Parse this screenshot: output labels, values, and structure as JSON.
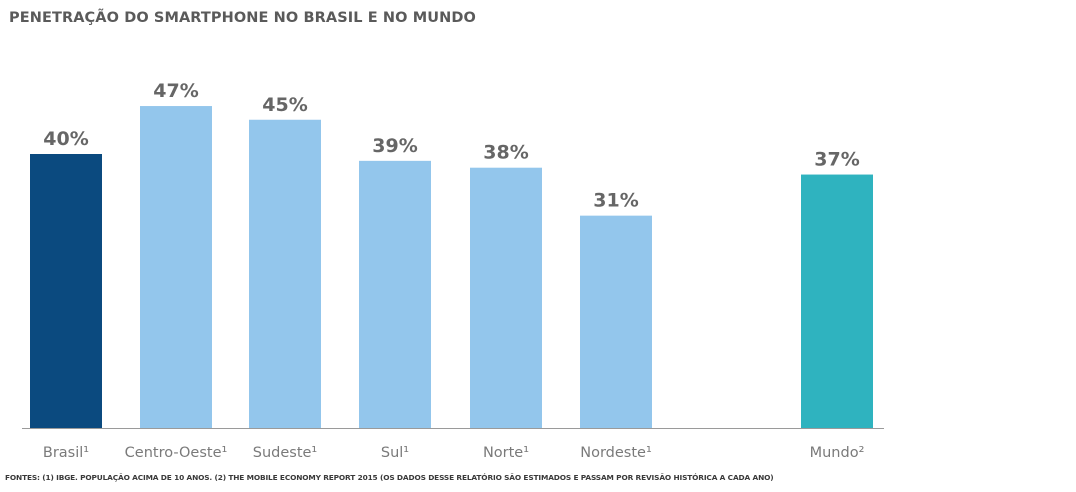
{
  "title": "PENETRAÇÃO DO SMARTPHONE NO BRASIL E NO MUNDO",
  "footnote": "FONTES: (1) IBGE. POPULAÇÃO ACIMA DE 10 ANOS. (2) THE MOBILE ECONOMY REPORT 2015 (OS DADOS DESSE RELATÓRIO SÃO ESTIMADOS E PASSAM POR REVISÃO HISTÓRICA A CADA ANO)",
  "chart_data": {
    "type": "bar",
    "title": "PENETRAÇÃO DO SMARTPHONE NO BRASIL E NO MUNDO",
    "xlabel": "",
    "ylabel": "",
    "ylim": [
      0,
      50
    ],
    "grid": false,
    "categories": [
      "Brasil¹",
      "Centro-Oeste¹",
      "Sudeste¹",
      "Sul¹",
      "Norte¹",
      "Nordeste¹",
      "Mundo²"
    ],
    "values": [
      40,
      47,
      45,
      39,
      38,
      31,
      37
    ],
    "value_labels": [
      "40%",
      "47%",
      "45%",
      "39%",
      "38%",
      "31%",
      "37%"
    ],
    "colors": [
      "#0b4a7f",
      "#93c6ec",
      "#93c6ec",
      "#93c6ec",
      "#93c6ec",
      "#93c6ec",
      "#2fb3bf"
    ],
    "axis_line_color": "#9a9a9a"
  }
}
